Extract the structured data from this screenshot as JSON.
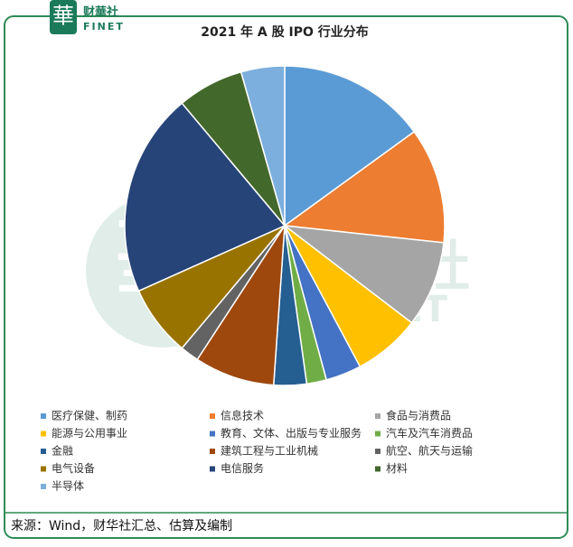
{
  "logo": {
    "mark": "華",
    "name": "财華社",
    "sub": "FINET"
  },
  "chart_data": {
    "type": "pie",
    "title": "2021 年 A 股 IPO 行业分布",
    "categories": [
      "医疗保健、制药",
      "信息技术",
      "食品与消费品",
      "能源与公用事业",
      "教育、文体、出版与专业服务",
      "汽车及汽车消费品",
      "金融",
      "建筑工程与工业机械",
      "航空、航天与运输",
      "电气设备",
      "电信服务",
      "材料",
      "半导体"
    ],
    "values": [
      15.0,
      11.7,
      8.7,
      6.8,
      3.6,
      2.0,
      3.3,
      8.1,
      1.9,
      7.2,
      20.6,
      6.7,
      4.4
    ],
    "colors": [
      "#5b9bd5",
      "#ed7d31",
      "#a5a5a5",
      "#ffc000",
      "#4472c4",
      "#70ad47",
      "#255e91",
      "#9e480e",
      "#636363",
      "#997300",
      "#264478",
      "#43682b",
      "#7cafdd"
    ],
    "legend": "bottom"
  },
  "source": "来源：Wind，财华社汇总、估算及编制"
}
